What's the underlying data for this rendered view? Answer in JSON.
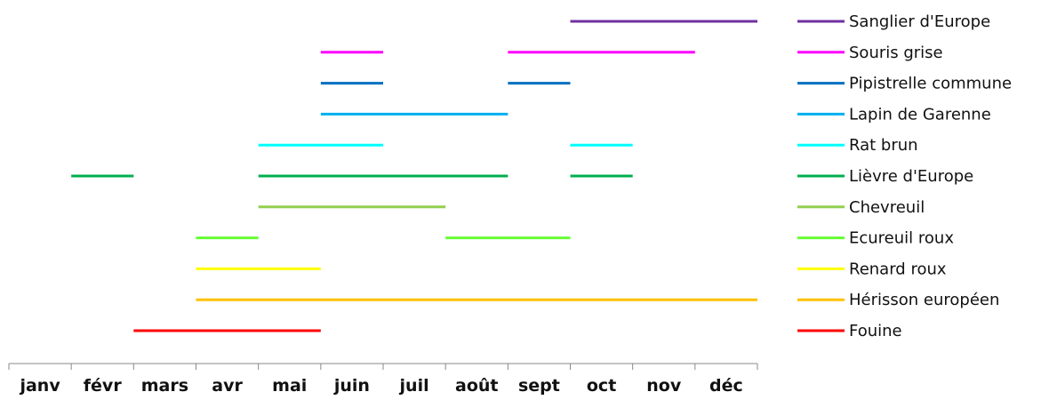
{
  "chart_data": {
    "type": "timeline",
    "months": [
      "janv",
      "févr",
      "mars",
      "avr",
      "mai",
      "juin",
      "juil",
      "août",
      "sept",
      "oct",
      "nov",
      "déc"
    ],
    "xlim": [
      0,
      12
    ],
    "grid": false,
    "legend_position": "right",
    "series": [
      {
        "name": "Sanglier d'Europe",
        "color": "#7030A0",
        "segments": [
          [
            9.0,
            12.0
          ]
        ]
      },
      {
        "name": "Souris grise",
        "color": "#FF00FF",
        "segments": [
          [
            5.0,
            6.0
          ],
          [
            8.0,
            11.0
          ]
        ]
      },
      {
        "name": "Pipistrelle commune",
        "color": "#0070C0",
        "segments": [
          [
            5.0,
            6.0
          ],
          [
            8.0,
            9.0
          ]
        ]
      },
      {
        "name": "Lapin de Garenne",
        "color": "#00B0F0",
        "segments": [
          [
            5.0,
            8.0
          ]
        ]
      },
      {
        "name": "Rat brun",
        "color": "#00FFFF",
        "segments": [
          [
            4.0,
            6.0
          ],
          [
            9.0,
            10.0
          ]
        ]
      },
      {
        "name": "Lièvre d'Europe",
        "color": "#00B050",
        "segments": [
          [
            1.0,
            2.0
          ],
          [
            4.0,
            8.0
          ],
          [
            9.0,
            10.0
          ]
        ]
      },
      {
        "name": "Chevreuil",
        "color": "#92D050",
        "segments": [
          [
            4.0,
            7.0
          ]
        ]
      },
      {
        "name": "Ecureuil roux",
        "color": "#66FF33",
        "segments": [
          [
            3.0,
            4.0
          ],
          [
            7.0,
            9.0
          ]
        ]
      },
      {
        "name": "Renard roux",
        "color": "#FFFF00",
        "segments": [
          [
            3.0,
            5.0
          ]
        ]
      },
      {
        "name": "Hérisson européen",
        "color": "#FFC000",
        "segments": [
          [
            3.0,
            12.0
          ]
        ]
      },
      {
        "name": "Fouine",
        "color": "#FF0000",
        "segments": [
          [
            2.0,
            5.0
          ]
        ]
      }
    ]
  }
}
